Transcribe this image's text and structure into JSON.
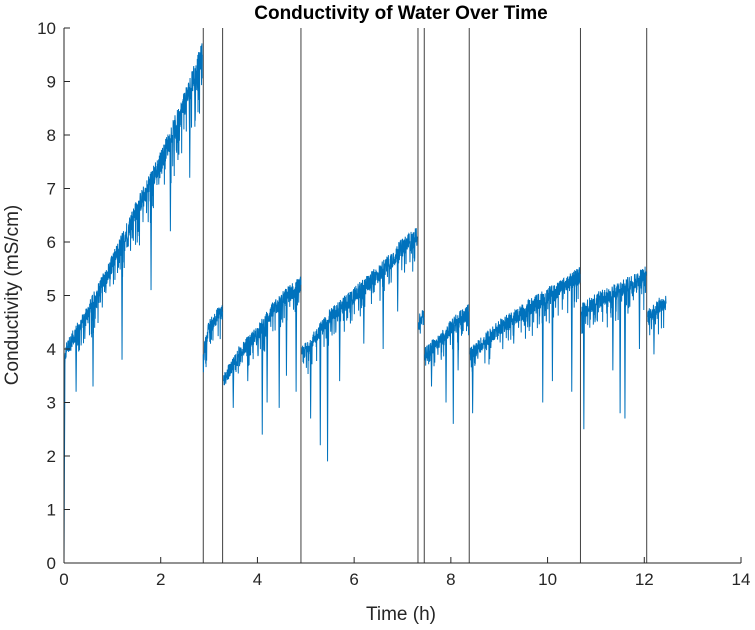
{
  "chart_data": {
    "type": "line",
    "title": "Conductivity of Water Over Time",
    "xlabel": "Time (h)",
    "ylabel": "Conductivity (mS/cm)",
    "xlim": [
      0,
      14
    ],
    "ylim": [
      0,
      10
    ],
    "xticks": [
      0,
      2,
      4,
      6,
      8,
      10,
      12,
      14
    ],
    "yticks": [
      0,
      1,
      2,
      3,
      4,
      5,
      6,
      7,
      8,
      9,
      10
    ],
    "grid": false,
    "legend": "none",
    "colors": {
      "series": "#0072BD",
      "marker_lines": "#404040",
      "axes": "#262626"
    },
    "vertical_lines_x": [
      2.88,
      3.28,
      4.9,
      7.32,
      7.45,
      8.38,
      10.68,
      12.05
    ],
    "series": [
      {
        "style": "noisy segments (dips shown as downward spikes)",
        "segments": [
          {
            "x": [
              0,
              0.02,
              0.05,
              0.5,
              1.0,
              1.5,
              2.0,
              2.5,
              2.86
            ],
            "y": [
              0.0,
              3.8,
              4.0,
              4.7,
              5.6,
              6.6,
              7.5,
              8.6,
              9.5
            ]
          },
          {
            "x": [
              2.88,
              3.0,
              3.15,
              3.28
            ],
            "y": [
              3.9,
              4.4,
              4.6,
              4.7
            ]
          },
          {
            "x": [
              3.3,
              3.6,
              4.0,
              4.3,
              4.6,
              4.9
            ],
            "y": [
              3.4,
              3.9,
              4.3,
              4.7,
              5.0,
              5.2
            ]
          },
          {
            "x": [
              4.92,
              5.5,
              6.0,
              6.5,
              7.0,
              7.3
            ],
            "y": [
              3.9,
              4.6,
              5.0,
              5.4,
              5.9,
              6.1
            ]
          },
          {
            "x": [
              7.33,
              7.44
            ],
            "y": [
              4.5,
              4.6
            ]
          },
          {
            "x": [
              7.46,
              7.8,
              8.1,
              8.37
            ],
            "y": [
              3.9,
              4.2,
              4.5,
              4.7
            ]
          },
          {
            "x": [
              8.4,
              9.0,
              9.5,
              10.0,
              10.4,
              10.67
            ],
            "y": [
              3.9,
              4.4,
              4.7,
              5.0,
              5.2,
              5.4
            ]
          },
          {
            "x": [
              10.7,
              11.0,
              11.5,
              12.04
            ],
            "y": [
              4.7,
              4.9,
              5.1,
              5.4
            ]
          },
          {
            "x": [
              12.07,
              12.3,
              12.45
            ],
            "y": [
              4.6,
              4.8,
              4.85
            ]
          }
        ],
        "dips": [
          [
            0.25,
            3.2
          ],
          [
            0.6,
            3.3
          ],
          [
            1.2,
            3.8
          ],
          [
            1.8,
            5.1
          ],
          [
            2.2,
            6.2
          ],
          [
            2.6,
            7.2
          ],
          [
            3.5,
            2.9
          ],
          [
            3.8,
            3.4
          ],
          [
            4.1,
            2.4
          ],
          [
            4.2,
            3.0
          ],
          [
            4.45,
            2.9
          ],
          [
            4.6,
            3.5
          ],
          [
            4.8,
            3.2
          ],
          [
            5.1,
            2.7
          ],
          [
            5.3,
            2.2
          ],
          [
            5.45,
            1.9
          ],
          [
            5.7,
            3.4
          ],
          [
            6.2,
            4.1
          ],
          [
            6.6,
            4.0
          ],
          [
            6.9,
            4.7
          ],
          [
            7.6,
            3.3
          ],
          [
            7.9,
            3.0
          ],
          [
            8.05,
            2.6
          ],
          [
            8.15,
            3.6
          ],
          [
            8.45,
            2.8
          ],
          [
            8.8,
            3.9
          ],
          [
            9.3,
            4.1
          ],
          [
            9.9,
            3.0
          ],
          [
            10.1,
            3.4
          ],
          [
            10.5,
            3.2
          ],
          [
            10.75,
            2.5
          ],
          [
            11.35,
            3.6
          ],
          [
            11.5,
            2.8
          ],
          [
            11.6,
            2.7
          ],
          [
            11.9,
            4.0
          ],
          [
            12.2,
            3.9
          ]
        ]
      }
    ]
  }
}
